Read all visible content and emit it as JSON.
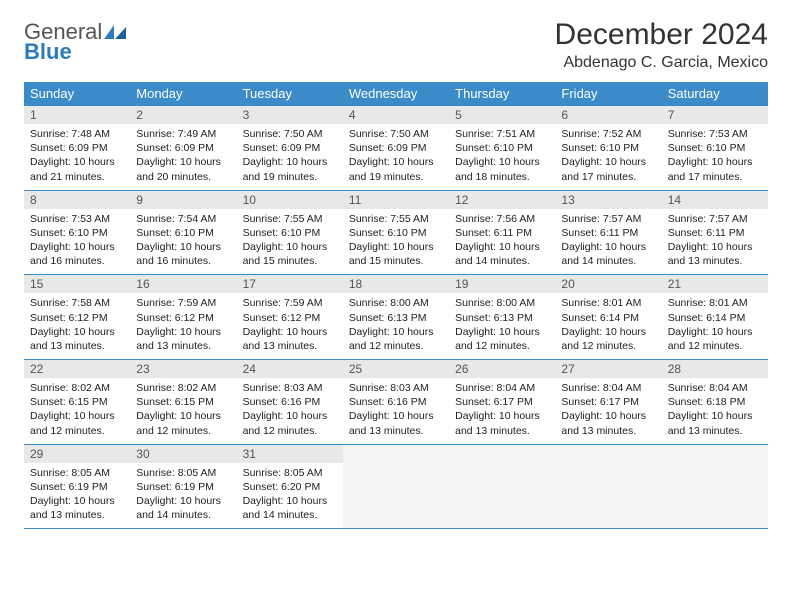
{
  "logo": {
    "text1": "General",
    "text2": "Blue"
  },
  "title": "December 2024",
  "location": "Abdenago C. Garcia, Mexico",
  "colors": {
    "header_bg": "#3b8bc9",
    "header_text": "#ffffff",
    "daynum_bg": "#e8e8e8",
    "border": "#3b8bc9",
    "logo_blue": "#2b7bbf"
  },
  "day_headers": [
    "Sunday",
    "Monday",
    "Tuesday",
    "Wednesday",
    "Thursday",
    "Friday",
    "Saturday"
  ],
  "weeks": [
    [
      {
        "n": "1",
        "sunrise": "7:48 AM",
        "sunset": "6:09 PM",
        "daylight": "10 hours and 21 minutes."
      },
      {
        "n": "2",
        "sunrise": "7:49 AM",
        "sunset": "6:09 PM",
        "daylight": "10 hours and 20 minutes."
      },
      {
        "n": "3",
        "sunrise": "7:50 AM",
        "sunset": "6:09 PM",
        "daylight": "10 hours and 19 minutes."
      },
      {
        "n": "4",
        "sunrise": "7:50 AM",
        "sunset": "6:09 PM",
        "daylight": "10 hours and 19 minutes."
      },
      {
        "n": "5",
        "sunrise": "7:51 AM",
        "sunset": "6:10 PM",
        "daylight": "10 hours and 18 minutes."
      },
      {
        "n": "6",
        "sunrise": "7:52 AM",
        "sunset": "6:10 PM",
        "daylight": "10 hours and 17 minutes."
      },
      {
        "n": "7",
        "sunrise": "7:53 AM",
        "sunset": "6:10 PM",
        "daylight": "10 hours and 17 minutes."
      }
    ],
    [
      {
        "n": "8",
        "sunrise": "7:53 AM",
        "sunset": "6:10 PM",
        "daylight": "10 hours and 16 minutes."
      },
      {
        "n": "9",
        "sunrise": "7:54 AM",
        "sunset": "6:10 PM",
        "daylight": "10 hours and 16 minutes."
      },
      {
        "n": "10",
        "sunrise": "7:55 AM",
        "sunset": "6:10 PM",
        "daylight": "10 hours and 15 minutes."
      },
      {
        "n": "11",
        "sunrise": "7:55 AM",
        "sunset": "6:10 PM",
        "daylight": "10 hours and 15 minutes."
      },
      {
        "n": "12",
        "sunrise": "7:56 AM",
        "sunset": "6:11 PM",
        "daylight": "10 hours and 14 minutes."
      },
      {
        "n": "13",
        "sunrise": "7:57 AM",
        "sunset": "6:11 PM",
        "daylight": "10 hours and 14 minutes."
      },
      {
        "n": "14",
        "sunrise": "7:57 AM",
        "sunset": "6:11 PM",
        "daylight": "10 hours and 13 minutes."
      }
    ],
    [
      {
        "n": "15",
        "sunrise": "7:58 AM",
        "sunset": "6:12 PM",
        "daylight": "10 hours and 13 minutes."
      },
      {
        "n": "16",
        "sunrise": "7:59 AM",
        "sunset": "6:12 PM",
        "daylight": "10 hours and 13 minutes."
      },
      {
        "n": "17",
        "sunrise": "7:59 AM",
        "sunset": "6:12 PM",
        "daylight": "10 hours and 13 minutes."
      },
      {
        "n": "18",
        "sunrise": "8:00 AM",
        "sunset": "6:13 PM",
        "daylight": "10 hours and 12 minutes."
      },
      {
        "n": "19",
        "sunrise": "8:00 AM",
        "sunset": "6:13 PM",
        "daylight": "10 hours and 12 minutes."
      },
      {
        "n": "20",
        "sunrise": "8:01 AM",
        "sunset": "6:14 PM",
        "daylight": "10 hours and 12 minutes."
      },
      {
        "n": "21",
        "sunrise": "8:01 AM",
        "sunset": "6:14 PM",
        "daylight": "10 hours and 12 minutes."
      }
    ],
    [
      {
        "n": "22",
        "sunrise": "8:02 AM",
        "sunset": "6:15 PM",
        "daylight": "10 hours and 12 minutes."
      },
      {
        "n": "23",
        "sunrise": "8:02 AM",
        "sunset": "6:15 PM",
        "daylight": "10 hours and 12 minutes."
      },
      {
        "n": "24",
        "sunrise": "8:03 AM",
        "sunset": "6:16 PM",
        "daylight": "10 hours and 12 minutes."
      },
      {
        "n": "25",
        "sunrise": "8:03 AM",
        "sunset": "6:16 PM",
        "daylight": "10 hours and 13 minutes."
      },
      {
        "n": "26",
        "sunrise": "8:04 AM",
        "sunset": "6:17 PM",
        "daylight": "10 hours and 13 minutes."
      },
      {
        "n": "27",
        "sunrise": "8:04 AM",
        "sunset": "6:17 PM",
        "daylight": "10 hours and 13 minutes."
      },
      {
        "n": "28",
        "sunrise": "8:04 AM",
        "sunset": "6:18 PM",
        "daylight": "10 hours and 13 minutes."
      }
    ],
    [
      {
        "n": "29",
        "sunrise": "8:05 AM",
        "sunset": "6:19 PM",
        "daylight": "10 hours and 13 minutes."
      },
      {
        "n": "30",
        "sunrise": "8:05 AM",
        "sunset": "6:19 PM",
        "daylight": "10 hours and 14 minutes."
      },
      {
        "n": "31",
        "sunrise": "8:05 AM",
        "sunset": "6:20 PM",
        "daylight": "10 hours and 14 minutes."
      },
      {
        "empty": true
      },
      {
        "empty": true
      },
      {
        "empty": true
      },
      {
        "empty": true
      }
    ]
  ],
  "labels": {
    "sunrise": "Sunrise:",
    "sunset": "Sunset:",
    "daylight": "Daylight:"
  }
}
